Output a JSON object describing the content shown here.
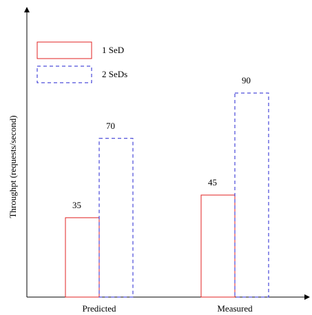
{
  "chart_data": {
    "type": "bar",
    "title": "",
    "xlabel": "",
    "ylabel": "Throughpt (requests/second)",
    "categories": [
      "Predicted",
      "Measured"
    ],
    "series": [
      {
        "name": "1 SeD",
        "values": [
          35,
          45
        ],
        "color": "#e02020",
        "style": "solid"
      },
      {
        "name": "2 SeDs",
        "values": [
          70,
          90
        ],
        "color": "#2020d0",
        "style": "dashed"
      }
    ],
    "ylim": [
      0,
      128
    ],
    "grid": false,
    "legend": "top-left",
    "data_labels": true
  }
}
